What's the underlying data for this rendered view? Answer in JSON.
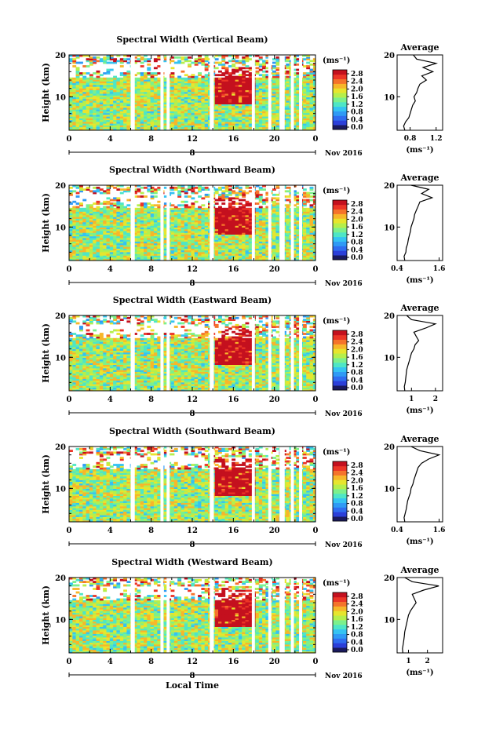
{
  "figure": {
    "colorbar_unit": "(ms⁻¹)",
    "colorbar_ticks": [
      "2.8",
      "2.4",
      "2.0",
      "1.6",
      "1.2",
      "0.8",
      "0.4",
      "0.0"
    ],
    "colorbar_colors": [
      "#1a1a5e",
      "#2b3fd9",
      "#2f6df0",
      "#2f9af5",
      "#35c3f2",
      "#4ee6c6",
      "#7cf08c",
      "#b5ef4c",
      "#e7e52e",
      "#f7b62a",
      "#f5732b",
      "#ec3527",
      "#c4101e"
    ],
    "ylabel": "Height (km)",
    "avg_ylabel": "(ms⁻¹)",
    "avg_title": "Average",
    "xticks": [
      "0",
      "4",
      "8",
      "12",
      "16",
      "20",
      "0"
    ],
    "date_marker": "8",
    "month_label": "Nov 2016",
    "xlabel": "Local Time"
  },
  "chart_data": [
    {
      "type": "heatmap",
      "title": "Spectral Width (Vertical Beam)",
      "x_unit": "Local Time (h)",
      "xlim": [
        0,
        24
      ],
      "ylim": [
        2,
        20
      ],
      "yticks": [
        "20",
        "10"
      ],
      "colorbar_range": [
        0.0,
        2.8
      ],
      "data_gaps_hours": [
        [
          6.0,
          6.4
        ],
        [
          8.9,
          9.2
        ],
        [
          9.5,
          9.8
        ],
        [
          13.7,
          14.1
        ],
        [
          17.8,
          18.1
        ],
        [
          19.4,
          19.7
        ],
        [
          20.5,
          21.0
        ],
        [
          21.6,
          21.9
        ],
        [
          22.4,
          22.7
        ]
      ],
      "high_width_region": {
        "time": [
          14.0,
          18.0
        ],
        "height": [
          8,
          17
        ],
        "value": "up to 2.8"
      },
      "average_profile": {
        "xlim": [
          0.6,
          1.3
        ],
        "xticks": [
          "0.8",
          "1.2"
        ],
        "height": [
          2,
          3,
          4,
          5,
          6,
          7,
          8,
          9,
          10,
          11,
          12,
          13,
          14,
          15,
          16,
          17,
          18,
          19,
          20
        ],
        "value": [
          0.72,
          0.7,
          0.73,
          0.78,
          0.8,
          0.82,
          0.84,
          0.88,
          0.86,
          0.9,
          0.92,
          0.95,
          1.05,
          0.98,
          1.15,
          1.0,
          1.2,
          0.9,
          0.85
        ]
      }
    },
    {
      "type": "heatmap",
      "title": "Spectral Width (Northward Beam)",
      "x_unit": "Local Time (h)",
      "xlim": [
        0,
        24
      ],
      "ylim": [
        2,
        20
      ],
      "yticks": [
        "20",
        "10"
      ],
      "colorbar_range": [
        0.0,
        2.8
      ],
      "data_gaps_hours": [
        [
          6.0,
          6.4
        ],
        [
          8.9,
          9.2
        ],
        [
          9.5,
          9.8
        ],
        [
          13.7,
          14.1
        ],
        [
          17.8,
          18.1
        ],
        [
          19.4,
          19.7
        ],
        [
          20.5,
          21.0
        ],
        [
          21.6,
          21.9
        ],
        [
          22.4,
          22.7
        ]
      ],
      "high_width_region": {
        "time": [
          14.0,
          18.0
        ],
        "height": [
          8,
          17
        ],
        "value": "up to 2.8"
      },
      "average_profile": {
        "xlim": [
          0.4,
          1.7
        ],
        "xticks": [
          "0.4",
          "1.6"
        ],
        "height": [
          2,
          3,
          4,
          5,
          6,
          7,
          8,
          9,
          10,
          11,
          12,
          13,
          14,
          15,
          16,
          17,
          18,
          19,
          20
        ],
        "value": [
          0.62,
          0.6,
          0.65,
          0.66,
          0.7,
          0.72,
          0.75,
          0.78,
          0.8,
          0.84,
          0.88,
          0.9,
          0.95,
          1.0,
          1.05,
          1.4,
          1.1,
          1.3,
          0.8
        ]
      }
    },
    {
      "type": "heatmap",
      "title": "Spectral Width (Eastward Beam)",
      "x_unit": "Local Time (h)",
      "xlim": [
        0,
        24
      ],
      "ylim": [
        2,
        20
      ],
      "yticks": [
        "20",
        "10"
      ],
      "colorbar_range": [
        0.0,
        2.8
      ],
      "data_gaps_hours": [
        [
          6.0,
          6.4
        ],
        [
          8.9,
          9.2
        ],
        [
          9.5,
          9.8
        ],
        [
          13.7,
          14.1
        ],
        [
          17.8,
          18.1
        ],
        [
          19.4,
          19.7
        ],
        [
          20.5,
          21.0
        ],
        [
          21.6,
          21.9
        ],
        [
          22.4,
          22.7
        ]
      ],
      "high_width_region": {
        "time": [
          14.0,
          18.0
        ],
        "height": [
          8,
          17
        ],
        "value": "up to 2.8"
      },
      "average_profile": {
        "xlim": [
          0.4,
          2.3
        ],
        "xticks": [
          "1",
          "2"
        ],
        "height": [
          2,
          3,
          4,
          5,
          6,
          7,
          8,
          9,
          10,
          11,
          12,
          13,
          14,
          15,
          16,
          17,
          18,
          19,
          20
        ],
        "value": [
          0.72,
          0.7,
          0.74,
          0.76,
          0.78,
          0.8,
          0.85,
          0.9,
          0.95,
          1.0,
          1.1,
          1.15,
          1.3,
          1.2,
          1.1,
          1.6,
          2.0,
          1.0,
          0.8
        ]
      }
    },
    {
      "type": "heatmap",
      "title": "Spectral Width (Southward Beam)",
      "x_unit": "Local Time (h)",
      "xlim": [
        0,
        24
      ],
      "ylim": [
        2,
        20
      ],
      "yticks": [
        "20",
        "10"
      ],
      "colorbar_range": [
        0.0,
        2.8
      ],
      "data_gaps_hours": [
        [
          6.0,
          6.4
        ],
        [
          8.9,
          9.2
        ],
        [
          9.5,
          9.8
        ],
        [
          13.7,
          14.1
        ],
        [
          17.8,
          18.1
        ],
        [
          19.4,
          19.7
        ],
        [
          20.5,
          21.0
        ],
        [
          21.6,
          21.9
        ],
        [
          22.4,
          22.7
        ]
      ],
      "high_width_region": {
        "time": [
          14.0,
          18.0
        ],
        "height": [
          8,
          17
        ],
        "value": "up to 2.8"
      },
      "average_profile": {
        "xlim": [
          0.4,
          1.7
        ],
        "xticks": [
          "0.4",
          "1.6"
        ],
        "height": [
          2,
          3,
          4,
          5,
          6,
          7,
          8,
          9,
          10,
          11,
          12,
          13,
          14,
          15,
          16,
          17,
          18,
          19,
          20
        ],
        "value": [
          0.62,
          0.6,
          0.63,
          0.66,
          0.68,
          0.7,
          0.74,
          0.78,
          0.8,
          0.85,
          0.88,
          0.92,
          0.96,
          1.0,
          1.1,
          1.3,
          1.6,
          1.05,
          0.8
        ]
      }
    },
    {
      "type": "heatmap",
      "title": "Spectral Width (Westward Beam)",
      "x_unit": "Local Time (h)",
      "xlim": [
        0,
        24
      ],
      "ylim": [
        2,
        20
      ],
      "yticks": [
        "20",
        "10"
      ],
      "colorbar_range": [
        0.0,
        2.8
      ],
      "data_gaps_hours": [
        [
          6.0,
          6.4
        ],
        [
          8.9,
          9.2
        ],
        [
          9.5,
          9.8
        ],
        [
          13.7,
          14.1
        ],
        [
          17.8,
          18.1
        ],
        [
          19.4,
          19.7
        ],
        [
          20.5,
          21.0
        ],
        [
          21.6,
          21.9
        ],
        [
          22.4,
          22.7
        ]
      ],
      "high_width_region": {
        "time": [
          14.0,
          18.0
        ],
        "height": [
          8,
          17
        ],
        "value": "up to 2.8"
      },
      "average_profile": {
        "xlim": [
          0.4,
          2.8
        ],
        "xticks": [
          "1",
          "2"
        ],
        "height": [
          2,
          3,
          4,
          5,
          6,
          7,
          8,
          9,
          10,
          11,
          12,
          13,
          14,
          15,
          16,
          17,
          18,
          19,
          20
        ],
        "value": [
          0.7,
          0.68,
          0.72,
          0.75,
          0.78,
          0.8,
          0.85,
          0.9,
          0.95,
          1.0,
          1.1,
          1.25,
          1.4,
          1.3,
          1.2,
          1.8,
          2.6,
          1.2,
          0.8
        ]
      }
    }
  ]
}
